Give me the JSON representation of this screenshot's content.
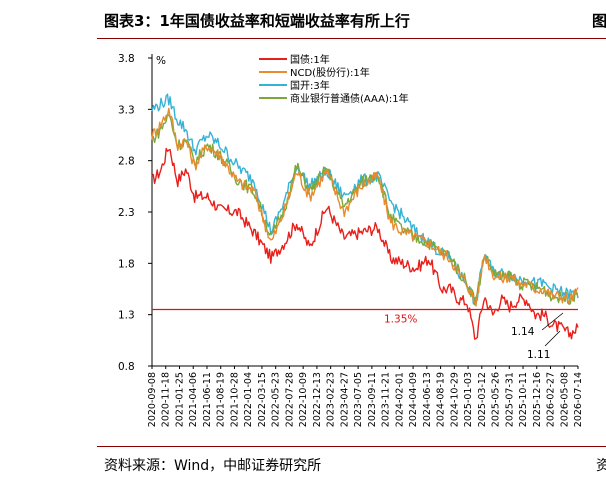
{
  "header": {
    "title": "图表3：1年国债收益率和短端收益率有所上行",
    "edge_text": "图"
  },
  "footer": {
    "source": "资料来源：Wind，中邮证券研究所",
    "edge_text": "资"
  },
  "chart_data": {
    "type": "line",
    "title": "",
    "xlabel": "",
    "ylabel": "%",
    "ylim": [
      0.8,
      3.8
    ],
    "yticks": [
      "3.8",
      "3.3",
      "2.8",
      "2.3",
      "1.8",
      "1.3",
      "0.8"
    ],
    "xticks": [
      "2020-09-08",
      "2020-11-18",
      "2021-01-25",
      "2021-04-06",
      "2021-06-11",
      "2021-08-19",
      "2021-10-28",
      "2022-01-04",
      "2022-03-15",
      "2022-05-23",
      "2022-07-28",
      "2022-10-09",
      "2022-12-13",
      "2023-02-23",
      "2023-04-27",
      "2023-07-05",
      "2023-09-11",
      "2023-11-21",
      "2024-02-01",
      "2024-04-09",
      "2024-06-13",
      "2024-08-19",
      "2024-10-29",
      "2025-01-03",
      "2025-03-12",
      "2025-05-26",
      "2025-07-31",
      "2025-10-11",
      "2025-12-16",
      "2026-02-27",
      "2026-05-08",
      "2026-07-14"
    ],
    "legend_position": "top-center",
    "grid": false,
    "reference_line": {
      "value": 1.35,
      "label": "1.35%",
      "color": "#e01010"
    },
    "annotations": [
      {
        "text": "1.14",
        "value": 1.14,
        "color": "#000000"
      },
      {
        "text": "1.11",
        "value": 1.11,
        "color": "#000000"
      }
    ],
    "series": [
      {
        "name": "国债:1年",
        "color": "#e8201b",
        "x": [
          0,
          0.02,
          0.04,
          0.06,
          0.08,
          0.1,
          0.13,
          0.16,
          0.2,
          0.24,
          0.28,
          0.31,
          0.34,
          0.37,
          0.41,
          0.45,
          0.49,
          0.53,
          0.56,
          0.59,
          0.62,
          0.65,
          0.68,
          0.7,
          0.72,
          0.74,
          0.76,
          0.78,
          0.8,
          0.82,
          0.84,
          0.86,
          0.88,
          0.9,
          0.92,
          0.94,
          0.96,
          0.98,
          1.0
        ],
        "values": [
          2.6,
          2.7,
          2.95,
          2.6,
          2.72,
          2.45,
          2.45,
          2.32,
          2.3,
          2.1,
          1.85,
          2.0,
          2.2,
          1.95,
          2.35,
          2.05,
          2.1,
          2.15,
          1.85,
          1.8,
          1.75,
          1.85,
          1.55,
          1.55,
          1.45,
          1.42,
          1.05,
          1.48,
          1.3,
          1.45,
          1.38,
          1.45,
          1.45,
          1.3,
          1.3,
          1.2,
          1.17,
          1.11,
          1.17
        ]
      },
      {
        "name": "NCD(股份行):1年",
        "color": "#e88a2e",
        "x": [
          0,
          0.02,
          0.04,
          0.06,
          0.08,
          0.1,
          0.13,
          0.16,
          0.2,
          0.24,
          0.28,
          0.31,
          0.34,
          0.37,
          0.41,
          0.45,
          0.49,
          0.53,
          0.56,
          0.59,
          0.62,
          0.65,
          0.68,
          0.7,
          0.72,
          0.74,
          0.76,
          0.78,
          0.8,
          0.82,
          0.84,
          0.86,
          0.88,
          0.9,
          0.92,
          0.94,
          0.96,
          0.98,
          1.0
        ],
        "values": [
          3.05,
          3.15,
          3.3,
          2.95,
          3.0,
          2.75,
          2.95,
          2.85,
          2.6,
          2.5,
          2.0,
          2.3,
          2.7,
          2.45,
          2.7,
          2.3,
          2.55,
          2.65,
          2.2,
          2.1,
          2.05,
          2.0,
          1.9,
          1.85,
          1.7,
          1.6,
          1.4,
          1.9,
          1.7,
          1.65,
          1.68,
          1.6,
          1.6,
          1.55,
          1.55,
          1.48,
          1.48,
          1.45,
          1.52
        ]
      },
      {
        "name": "国开:3年",
        "color": "#35b3d6",
        "x": [
          0,
          0.02,
          0.04,
          0.06,
          0.08,
          0.1,
          0.13,
          0.16,
          0.2,
          0.24,
          0.28,
          0.31,
          0.34,
          0.37,
          0.41,
          0.45,
          0.49,
          0.53,
          0.56,
          0.59,
          0.62,
          0.65,
          0.68,
          0.7,
          0.72,
          0.74,
          0.76,
          0.78,
          0.8,
          0.82,
          0.84,
          0.86,
          0.88,
          0.9,
          0.92,
          0.94,
          0.96,
          0.98,
          1.0
        ],
        "values": [
          3.3,
          3.35,
          3.4,
          3.2,
          3.1,
          2.9,
          3.05,
          2.95,
          2.75,
          2.6,
          2.1,
          2.4,
          2.75,
          2.55,
          2.7,
          2.45,
          2.6,
          2.65,
          2.4,
          2.25,
          2.1,
          2.0,
          1.9,
          1.85,
          1.7,
          1.6,
          1.4,
          1.9,
          1.72,
          1.7,
          1.7,
          1.65,
          1.65,
          1.6,
          1.6,
          1.55,
          1.52,
          1.5,
          1.5
        ]
      },
      {
        "name": "商业银行普通债(AAA):1年",
        "color": "#7aa83a",
        "x": [
          0,
          0.02,
          0.04,
          0.06,
          0.08,
          0.1,
          0.13,
          0.16,
          0.2,
          0.24,
          0.28,
          0.31,
          0.34,
          0.37,
          0.41,
          0.45,
          0.49,
          0.53,
          0.56,
          0.59,
          0.62,
          0.65,
          0.68,
          0.7,
          0.72,
          0.74,
          0.76,
          0.78,
          0.8,
          0.82,
          0.84,
          0.86,
          0.88,
          0.9,
          0.92,
          0.94,
          0.96,
          0.98,
          1.0
        ],
        "values": [
          3.0,
          3.1,
          3.25,
          2.95,
          3.0,
          2.78,
          2.95,
          2.85,
          2.62,
          2.5,
          2.05,
          2.32,
          2.75,
          2.5,
          2.72,
          2.35,
          2.58,
          2.68,
          2.25,
          2.12,
          2.05,
          2.0,
          1.9,
          1.88,
          1.72,
          1.62,
          1.42,
          1.88,
          1.72,
          1.66,
          1.68,
          1.6,
          1.6,
          1.56,
          1.55,
          1.48,
          1.47,
          1.46,
          1.5
        ]
      }
    ]
  }
}
